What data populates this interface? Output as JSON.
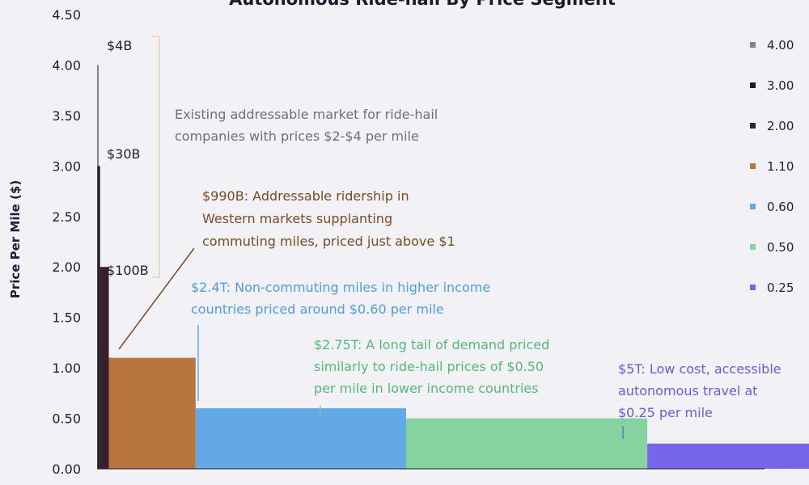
{
  "colors": {
    "background": "#f2f2f6",
    "axis": "#1f1f2e",
    "grid": "#e6e6ee",
    "bracket": "#f2c7a4",
    "leader_brown": "#7a4a20",
    "leader_blue": "#5aa8e6",
    "leader_green": "#7ccf97",
    "leader_purple": "#7a68e8"
  },
  "chart_data": {
    "type": "bar",
    "title": "Autonomous Ride-hail By Price Segment",
    "ylabel": "Price Per Mile ($)",
    "xlabel": "",
    "ylim": [
      0,
      4.5
    ],
    "yticks": [
      "0.00",
      "0.50",
      "1.00",
      "1.50",
      "2.00",
      "2.50",
      "3.00",
      "3.50",
      "4.00",
      "4.50"
    ],
    "grid": false,
    "legend_position": "right",
    "x_unit": "$T",
    "segments": [
      {
        "legend": "4.00",
        "price": 4.0,
        "market_size": 0.004,
        "color": "#8b7c8f"
      },
      {
        "legend": "3.00",
        "price": 3.0,
        "market_size": 0.03,
        "color": "#1c1c2a"
      },
      {
        "legend": "2.00",
        "price": 2.0,
        "market_size": 0.1,
        "color": "#3a1e2e"
      },
      {
        "legend": "1.10",
        "price": 1.1,
        "market_size": 0.99,
        "color": "#b8763e"
      },
      {
        "legend": "0.60",
        "price": 0.6,
        "market_size": 2.4,
        "color": "#62a9e6"
      },
      {
        "legend": "0.50",
        "price": 0.5,
        "market_size": 2.75,
        "color": "#86d39f"
      },
      {
        "legend": "0.25",
        "price": 0.25,
        "market_size": 5.0,
        "color": "#7667ea"
      }
    ],
    "annotations": [
      {
        "id": "a4b",
        "lines": [
          "$4B"
        ],
        "color": "#1f1f2e"
      },
      {
        "id": "a30b",
        "lines": [
          "$30B"
        ],
        "color": "#1f1f2e"
      },
      {
        "id": "a100b",
        "lines": [
          "$100B"
        ],
        "color": "#1f1f2e"
      },
      {
        "id": "existing",
        "lines": [
          "Existing addressable market for ride-hail",
          "companies with prices $2-$4 per mile"
        ],
        "color": "#6e6e7e"
      },
      {
        "id": "a990b",
        "lines": [
          "$990B: Addressable ridership in",
          "Western markets supplanting",
          "commuting miles, priced just above $1"
        ],
        "color": "#7a4a20"
      },
      {
        "id": "a24t",
        "lines": [
          "$2.4T: Non-commuting miles in higher income",
          "countries priced around $0.60 per mile"
        ],
        "color": "#4e9de0"
      },
      {
        "id": "a275t",
        "lines": [
          "$2.75T:  A long tail of demand priced",
          "similarly to ride-hail prices of $0.50",
          "per mile in lower income countries"
        ],
        "color": "#55b877"
      },
      {
        "id": "a5t",
        "lines": [
          "$5T: Low cost, accessible",
          "autonomous travel at",
          "$0.25 per mile"
        ],
        "color": "#6a5ae0"
      }
    ]
  }
}
